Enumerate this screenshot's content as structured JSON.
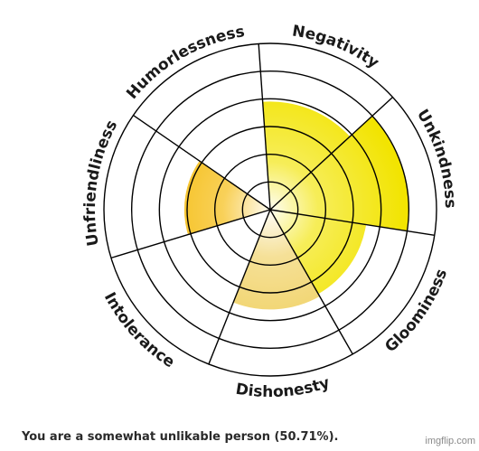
{
  "chart_data": {
    "type": "polar-area",
    "categories": [
      "Negativity",
      "Unkindness",
      "Gloominess",
      "Dishonesty",
      "Intolerance",
      "Unfriendliness",
      "Humorlessness"
    ],
    "values": [
      3.9,
      5.0,
      3.5,
      3.6,
      0,
      3.1,
      0
    ],
    "rmax": 6,
    "rings": 6,
    "colors": [
      "#f2e400",
      "#f2e400",
      "#f2e400",
      "#f0d060",
      "#f5b800",
      "#f5b800",
      "#f5b800"
    ]
  },
  "result_text": "You are a somewhat unlikable person (50.71%).",
  "watermark": "imgflip.com"
}
